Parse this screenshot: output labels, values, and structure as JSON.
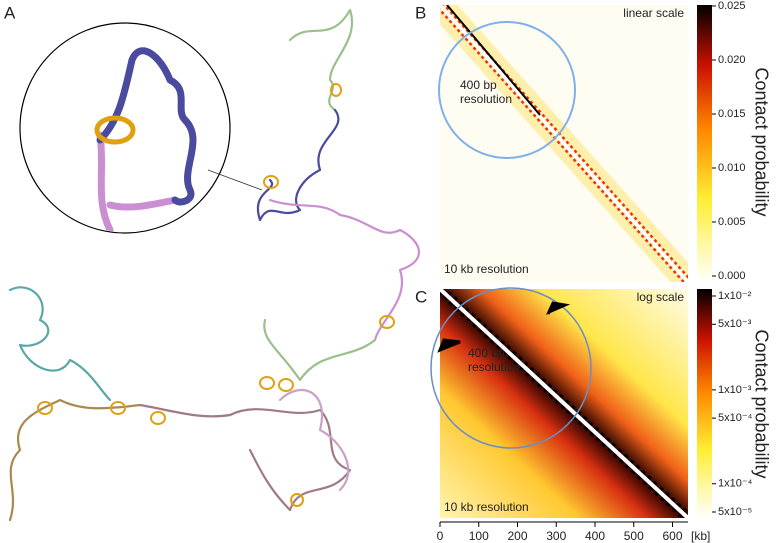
{
  "panels": {
    "A": {
      "label": "A"
    },
    "B": {
      "label": "B",
      "scale_note": "linear scale",
      "inset_note": [
        "400 bp",
        "resolution"
      ],
      "base_note": "10 kb resolution",
      "colorbar": {
        "title": "Contact probability",
        "scale": "linear",
        "lim": [
          0,
          0.025
        ],
        "ticks": [
          {
            "value": 0,
            "label": "0.000"
          },
          {
            "value": 0.005,
            "label": "0.005"
          },
          {
            "value": 0.01,
            "label": "0.010"
          },
          {
            "value": 0.015,
            "label": "0.015"
          },
          {
            "value": 0.02,
            "label": "0.020"
          },
          {
            "value": 0.025,
            "label": "0.025"
          }
        ]
      }
    },
    "C": {
      "label": "C",
      "scale_note": "log scale",
      "inset_note": [
        "400 bp",
        "resolution"
      ],
      "base_note": "10 kb resolution",
      "colorbar": {
        "title": "Contact probability",
        "scale": "log",
        "lim": [
          5e-05,
          0.01
        ],
        "ticks": [
          {
            "value": 0.01,
            "label": "1x10⁻²"
          },
          {
            "value": 0.005,
            "label": "5x10⁻³"
          },
          {
            "value": 0.001,
            "label": "1x10⁻³"
          },
          {
            "value": 0.0005,
            "label": "5x10⁻⁴"
          },
          {
            "value": 0.0001,
            "label": "1x10⁻⁴"
          },
          {
            "value": 5e-05,
            "label": "5x10⁻⁵"
          }
        ]
      },
      "x_axis": {
        "lim": [
          0,
          640
        ],
        "ticks": [
          0,
          100,
          200,
          300,
          400,
          500,
          600
        ],
        "unit": "[kb]"
      }
    }
  }
}
